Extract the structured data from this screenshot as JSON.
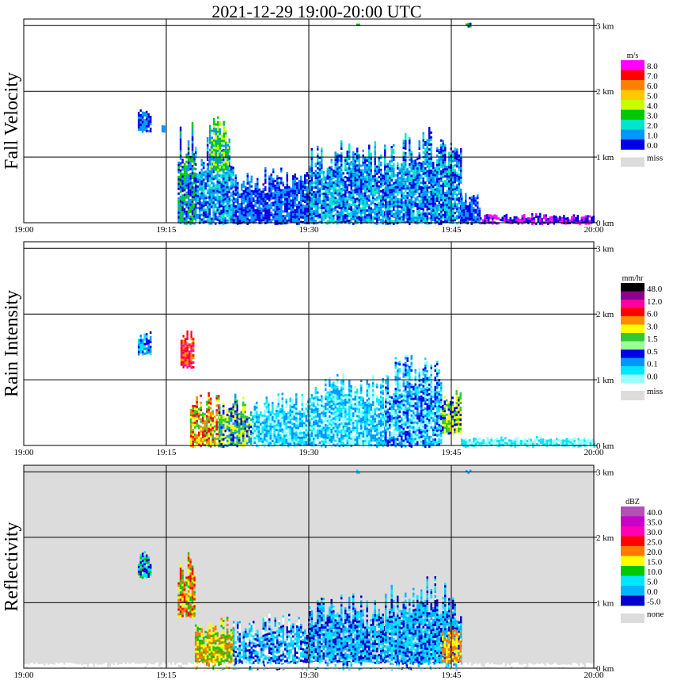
{
  "title": "2021-12-29   19:00-20:00 UTC",
  "chart_data": [
    {
      "type": "heatmap",
      "ylabel": "Fall Velocity",
      "x_ticks": [
        "19:00",
        "19:15",
        "19:30",
        "19:45",
        "20:00"
      ],
      "y_ticks": [
        "0 km",
        "1 km",
        "2 km",
        "3 km"
      ],
      "xlim_minutes": [
        0,
        60
      ],
      "ylim_km": [
        0,
        3.1
      ],
      "background": "#ffffff",
      "legend": {
        "unit": "m/s",
        "labels": [
          "8.0",
          "7.0",
          "6.0",
          "5.0",
          "4.0",
          "3.0",
          "2.0",
          "1.0",
          "0.0"
        ],
        "colors": [
          "#ff00ff",
          "#ff0000",
          "#ff7f00",
          "#ffc800",
          "#c8ff00",
          "#00c800",
          "#00e6c8",
          "#0096ff",
          "#0000e6"
        ],
        "missing_label": "miss",
        "missing_color": "#dcdcdc"
      },
      "echoes": [
        {
          "t": [
            12.0,
            13.3
          ],
          "z": [
            1.4,
            1.8
          ],
          "colors": [
            "#0096ff",
            "#0000e6"
          ]
        },
        {
          "t": [
            14.5,
            14.8
          ],
          "z": [
            1.4,
            1.5
          ],
          "colors": [
            "#0096ff"
          ]
        },
        {
          "t": [
            16.2,
            18.0
          ],
          "z": [
            0.0,
            1.8
          ],
          "colors": [
            "#0096ff",
            "#0000e6",
            "#00c800"
          ]
        },
        {
          "t": [
            18.0,
            22.0
          ],
          "z": [
            0.0,
            1.5
          ],
          "colors": [
            "#0096ff",
            "#0000e6",
            "#00e6c8"
          ]
        },
        {
          "t": [
            19.5,
            21.5
          ],
          "z": [
            0.8,
            1.7
          ],
          "colors": [
            "#00c800",
            "#c8ff00",
            "#0096ff"
          ]
        },
        {
          "t": [
            22.0,
            30.0
          ],
          "z": [
            0.0,
            0.9
          ],
          "colors": [
            "#0096ff",
            "#0000e6"
          ]
        },
        {
          "t": [
            30.0,
            38.0
          ],
          "z": [
            0.0,
            1.4
          ],
          "colors": [
            "#0096ff",
            "#0000e6",
            "#00e6c8"
          ]
        },
        {
          "t": [
            38.0,
            46.0
          ],
          "z": [
            0.0,
            1.5
          ],
          "colors": [
            "#0096ff",
            "#0000e6",
            "#00e6c8"
          ]
        },
        {
          "t": [
            46.0,
            48.0
          ],
          "z": [
            0.0,
            0.5
          ],
          "colors": [
            "#0000e6",
            "#0096ff"
          ]
        },
        {
          "t": [
            48.0,
            60.0
          ],
          "z": [
            0.0,
            0.15
          ],
          "colors": [
            "#0000e6",
            "#ff00ff"
          ]
        },
        {
          "t": [
            35.0,
            35.3
          ],
          "z": [
            3.0,
            3.05
          ],
          "colors": [
            "#00c800"
          ]
        },
        {
          "t": [
            46.5,
            47.0
          ],
          "z": [
            3.0,
            3.05
          ],
          "colors": [
            "#0000e6",
            "#00c800"
          ]
        }
      ]
    },
    {
      "type": "heatmap",
      "ylabel": "Rain Intensity",
      "x_ticks": [
        "19:00",
        "19:15",
        "19:30",
        "19:45",
        "20:00"
      ],
      "y_ticks": [
        "0 km",
        "1 km",
        "2 km",
        "3 km"
      ],
      "xlim_minutes": [
        0,
        60
      ],
      "ylim_km": [
        0,
        3.1
      ],
      "background": "#ffffff",
      "legend": {
        "unit": "mm/hr",
        "labels": [
          "48.0",
          "12.0",
          "6.0",
          "3.0",
          "1.5",
          "0.5",
          "0.1",
          "0.0"
        ],
        "colors": [
          "#000000",
          "#8c008c",
          "#ff00a0",
          "#ff0000",
          "#ff8c00",
          "#ffff00",
          "#32c832",
          "#96ff96",
          "#0000e6",
          "#0096ff",
          "#00e6ff",
          "#96ffff"
        ],
        "missing_label": "miss",
        "missing_color": "#dcdcdc"
      },
      "echoes": [
        {
          "t": [
            12.0,
            13.3
          ],
          "z": [
            1.4,
            1.8
          ],
          "colors": [
            "#0096ff",
            "#00e6ff",
            "#0000e6"
          ]
        },
        {
          "t": [
            16.5,
            17.8
          ],
          "z": [
            1.2,
            1.8
          ],
          "colors": [
            "#ff0000",
            "#ff00a0",
            "#ff8c00"
          ]
        },
        {
          "t": [
            17.5,
            20.5
          ],
          "z": [
            0.0,
            0.9
          ],
          "colors": [
            "#ff8c00",
            "#ffff00",
            "#ff0000",
            "#32c832"
          ]
        },
        {
          "t": [
            20.5,
            24.0
          ],
          "z": [
            0.0,
            0.8
          ],
          "colors": [
            "#ffff00",
            "#32c832",
            "#0000e6",
            "#0096ff"
          ]
        },
        {
          "t": [
            24.0,
            30.0
          ],
          "z": [
            0.0,
            0.9
          ],
          "colors": [
            "#96ffff",
            "#00e6ff",
            "#0096ff"
          ]
        },
        {
          "t": [
            30.0,
            38.0
          ],
          "z": [
            0.0,
            1.2
          ],
          "colors": [
            "#96ffff",
            "#00e6ff",
            "#0096ff"
          ]
        },
        {
          "t": [
            38.0,
            44.0
          ],
          "z": [
            0.0,
            1.5
          ],
          "colors": [
            "#96ffff",
            "#00e6ff",
            "#0096ff",
            "#0000e6"
          ]
        },
        {
          "t": [
            44.0,
            46.0
          ],
          "z": [
            0.2,
            0.9
          ],
          "colors": [
            "#ffff00",
            "#32c832",
            "#0000e6"
          ]
        },
        {
          "t": [
            46.0,
            60.0
          ],
          "z": [
            0.0,
            0.15
          ],
          "colors": [
            "#96ffff",
            "#00e6ff"
          ]
        }
      ]
    },
    {
      "type": "heatmap",
      "ylabel": "Reflectivity",
      "x_ticks": [
        "19:00",
        "19:15",
        "19:30",
        "19:45",
        "20:00"
      ],
      "y_ticks": [
        "0 km",
        "1 km",
        "2 km",
        "3 km"
      ],
      "xlim_minutes": [
        0,
        60
      ],
      "ylim_km": [
        0,
        3.1
      ],
      "background": "#dcdcdc",
      "legend": {
        "unit": "dBZ",
        "labels": [
          "40.0",
          "35.0",
          "30.0",
          "25.0",
          "20.0",
          "15.0",
          "10.0",
          "5.0",
          "0.0",
          "-5.0"
        ],
        "colors": [
          "#b450b4",
          "#c800c8",
          "#ff00b4",
          "#ff0000",
          "#ff7800",
          "#ffff00",
          "#00c800",
          "#00e6ff",
          "#00b4ff",
          "#0000c8"
        ],
        "missing_label": "none",
        "missing_color": "#dcdcdc"
      },
      "echoes": [
        {
          "t": [
            12.0,
            13.3
          ],
          "z": [
            1.4,
            1.8
          ],
          "colors": [
            "#00c800",
            "#00e6ff",
            "#0000c8"
          ]
        },
        {
          "t": [
            16.2,
            18.0
          ],
          "z": [
            0.8,
            1.8
          ],
          "colors": [
            "#ff0000",
            "#ff7800",
            "#ffff00",
            "#00c800"
          ]
        },
        {
          "t": [
            18.0,
            22.0
          ],
          "z": [
            0.0,
            0.9
          ],
          "colors": [
            "#ff7800",
            "#ffff00",
            "#00c800"
          ]
        },
        {
          "t": [
            22.0,
            30.0
          ],
          "z": [
            0.0,
            0.9
          ],
          "colors": [
            "#00e6ff",
            "#00b4ff",
            "#0000c8",
            "#ffffff"
          ]
        },
        {
          "t": [
            30.0,
            38.0
          ],
          "z": [
            0.0,
            1.2
          ],
          "colors": [
            "#00b4ff",
            "#00e6ff",
            "#0000c8"
          ]
        },
        {
          "t": [
            38.0,
            46.0
          ],
          "z": [
            0.0,
            1.5
          ],
          "colors": [
            "#00e6ff",
            "#00b4ff",
            "#0000c8"
          ]
        },
        {
          "t": [
            44.0,
            46.0
          ],
          "z": [
            0.1,
            0.7
          ],
          "colors": [
            "#ffff00",
            "#ff7800"
          ]
        },
        {
          "t": [
            0.0,
            60.0
          ],
          "z": [
            0.0,
            0.1
          ],
          "colors": [
            "#ffffff"
          ]
        },
        {
          "t": [
            35.0,
            35.3
          ],
          "z": [
            3.0,
            3.05
          ],
          "colors": [
            "#00e6ff"
          ]
        },
        {
          "t": [
            46.5,
            47.0
          ],
          "z": [
            3.0,
            3.05
          ],
          "colors": [
            "#00b4ff"
          ]
        }
      ]
    }
  ]
}
